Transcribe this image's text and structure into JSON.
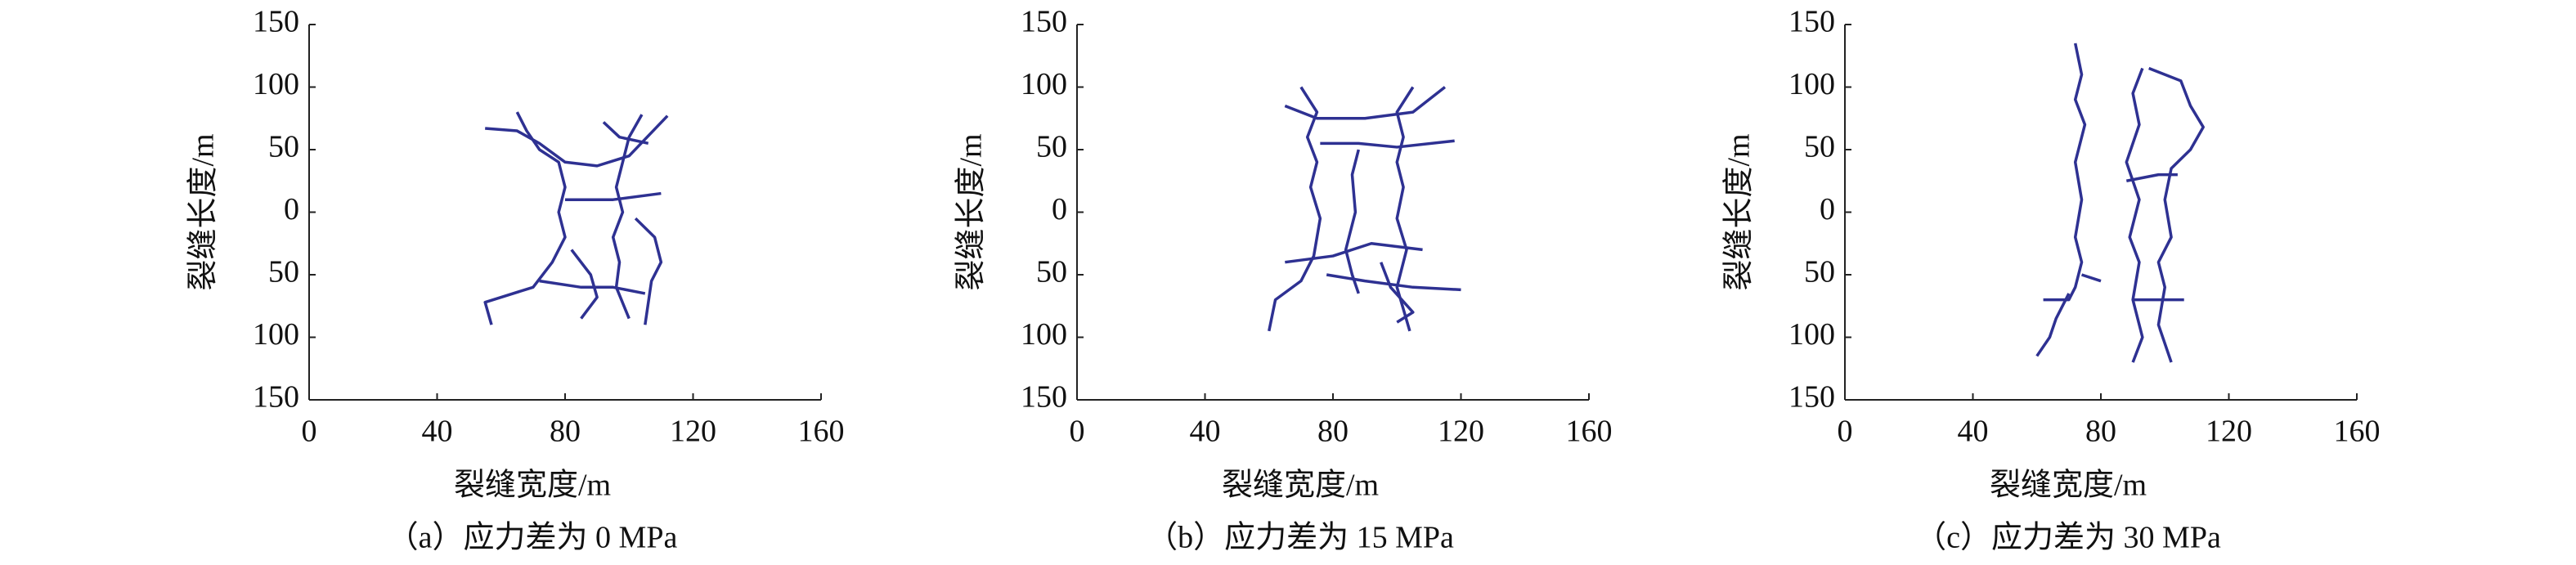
{
  "chart_data": [
    {
      "type": "line",
      "xlabel": "裂缝宽度/m",
      "ylabel": "裂缝长度/m",
      "caption": "（a）应力差为 0 MPa",
      "xlim": [
        0,
        160
      ],
      "ylim": [
        -150,
        150
      ],
      "xticks": [
        0,
        40,
        80,
        120,
        160
      ],
      "yticks": [
        {
          "value": -150,
          "label": "150"
        },
        {
          "value": -100,
          "label": "100"
        },
        {
          "value": -50,
          "label": "50"
        },
        0,
        50,
        100,
        150
      ],
      "series": [
        {
          "color": "#2e3192",
          "x": [
            65,
            68,
            72,
            78,
            80,
            78,
            80,
            76,
            70,
            60,
            55,
            57
          ],
          "values": [
            80,
            65,
            50,
            40,
            20,
            0,
            -20,
            -40,
            -60,
            -68,
            -72,
            -90
          ]
        },
        {
          "color": "#2e3192",
          "x": [
            104,
            100,
            98,
            96,
            98,
            95,
            97,
            96,
            100
          ],
          "values": [
            78,
            60,
            40,
            20,
            0,
            -20,
            -40,
            -60,
            -85
          ]
        },
        {
          "color": "#2e3192",
          "x": [
            55,
            65,
            72,
            80,
            90,
            100,
            112
          ],
          "values": [
            67,
            65,
            55,
            40,
            37,
            45,
            77
          ]
        },
        {
          "color": "#2e3192",
          "x": [
            82,
            88,
            90,
            85
          ],
          "values": [
            -30,
            -50,
            -68,
            -85
          ]
        },
        {
          "color": "#2e3192",
          "x": [
            102,
            108,
            110,
            107,
            105
          ],
          "values": [
            -5,
            -20,
            -40,
            -55,
            -90
          ]
        },
        {
          "color": "#2e3192",
          "x": [
            72,
            85,
            95,
            105
          ],
          "values": [
            -55,
            -60,
            -60,
            -65
          ]
        },
        {
          "color": "#2e3192",
          "x": [
            80,
            95,
            110
          ],
          "values": [
            10,
            10,
            15
          ]
        },
        {
          "color": "#2e3192",
          "x": [
            92,
            97,
            106
          ],
          "values": [
            72,
            60,
            55
          ]
        }
      ]
    },
    {
      "type": "line",
      "xlabel": "裂缝宽度/m",
      "ylabel": "裂缝长度/m",
      "caption": "（b）应力差为 15 MPa",
      "xlim": [
        0,
        160
      ],
      "ylim": [
        -150,
        150
      ],
      "xticks": [
        0,
        40,
        80,
        120,
        160
      ],
      "yticks": [
        {
          "value": -150,
          "label": "150"
        },
        {
          "value": -100,
          "label": "100"
        },
        {
          "value": -50,
          "label": "50"
        },
        0,
        50,
        100,
        150
      ],
      "series": [
        {
          "color": "#2e3192",
          "x": [
            70,
            75,
            72,
            75,
            73,
            76,
            74,
            70,
            62,
            60
          ],
          "values": [
            100,
            80,
            60,
            40,
            20,
            -5,
            -35,
            -55,
            -70,
            -95
          ]
        },
        {
          "color": "#2e3192",
          "x": [
            105,
            100,
            102,
            100,
            102,
            100,
            103,
            100,
            104
          ],
          "values": [
            100,
            80,
            60,
            40,
            20,
            -5,
            -30,
            -60,
            -95
          ]
        },
        {
          "color": "#2e3192",
          "x": [
            65,
            75,
            90,
            105,
            115
          ],
          "values": [
            85,
            75,
            75,
            80,
            100
          ]
        },
        {
          "color": "#2e3192",
          "x": [
            76,
            88,
            100,
            118
          ],
          "values": [
            55,
            55,
            52,
            57
          ]
        },
        {
          "color": "#2e3192",
          "x": [
            88,
            86,
            87,
            84,
            86,
            88
          ],
          "values": [
            50,
            30,
            0,
            -30,
            -50,
            -65
          ]
        },
        {
          "color": "#2e3192",
          "x": [
            65,
            80,
            92,
            108
          ],
          "values": [
            -40,
            -35,
            -25,
            -30
          ]
        },
        {
          "color": "#2e3192",
          "x": [
            78,
            90,
            105,
            120
          ],
          "values": [
            -50,
            -55,
            -60,
            -62
          ]
        },
        {
          "color": "#2e3192",
          "x": [
            95,
            98,
            105,
            100
          ],
          "values": [
            -40,
            -60,
            -80,
            -88
          ]
        }
      ]
    },
    {
      "type": "line",
      "xlabel": "裂缝宽度/m",
      "ylabel": "裂缝长度/m",
      "caption": "（c）应力差为 30 MPa",
      "xlim": [
        0,
        160
      ],
      "ylim": [
        -150,
        150
      ],
      "xticks": [
        0,
        40,
        80,
        120,
        160
      ],
      "yticks": [
        {
          "value": -150,
          "label": "150"
        },
        {
          "value": -100,
          "label": "100"
        },
        {
          "value": -50,
          "label": "50"
        },
        0,
        50,
        100,
        150
      ],
      "series": [
        {
          "color": "#2e3192",
          "x": [
            72,
            74,
            72,
            75,
            72,
            74,
            72,
            74,
            72,
            70,
            62
          ],
          "values": [
            135,
            110,
            90,
            70,
            40,
            10,
            -20,
            -40,
            -60,
            -70,
            -70
          ]
        },
        {
          "color": "#2e3192",
          "x": [
            70,
            66,
            64,
            60
          ],
          "values": [
            -65,
            -85,
            -100,
            -115
          ]
        },
        {
          "color": "#2e3192",
          "x": [
            74,
            80
          ],
          "values": [
            -50,
            -55
          ]
        },
        {
          "color": "#2e3192",
          "x": [
            93,
            90,
            92,
            88,
            92,
            89,
            92,
            90,
            93,
            90
          ],
          "values": [
            115,
            95,
            70,
            40,
            10,
            -20,
            -40,
            -70,
            -100,
            -120
          ]
        },
        {
          "color": "#2e3192",
          "x": [
            95,
            105,
            108,
            112,
            108,
            102,
            100,
            102,
            98,
            100,
            98,
            102
          ],
          "values": [
            115,
            105,
            85,
            68,
            50,
            35,
            10,
            -20,
            -40,
            -60,
            -90,
            -120
          ]
        },
        {
          "color": "#2e3192",
          "x": [
            88,
            98,
            104
          ],
          "values": [
            25,
            30,
            30
          ]
        },
        {
          "color": "#2e3192",
          "x": [
            90,
            100,
            106
          ],
          "values": [
            -70,
            -70,
            -70
          ]
        }
      ]
    }
  ]
}
